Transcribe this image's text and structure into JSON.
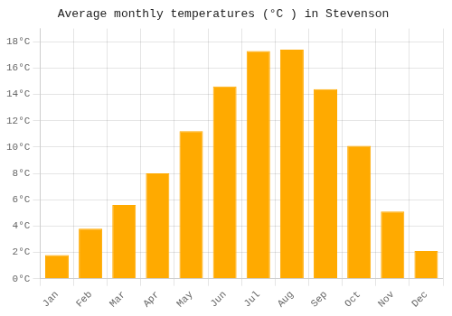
{
  "chart_data": {
    "type": "bar",
    "title": "Average monthly temperatures (°C ) in Stevenson",
    "categories": [
      "Jan",
      "Feb",
      "Mar",
      "Apr",
      "May",
      "Jun",
      "Jul",
      "Aug",
      "Sep",
      "Oct",
      "Nov",
      "Dec"
    ],
    "values": [
      1.8,
      3.8,
      5.6,
      8.0,
      11.2,
      14.6,
      17.3,
      17.4,
      14.4,
      10.1,
      5.1,
      2.1
    ],
    "color": "#FFAA00",
    "ylim": [
      0,
      19
    ],
    "yticks": [
      {
        "value": 0,
        "label": "0°C"
      },
      {
        "value": 2,
        "label": "2°C"
      },
      {
        "value": 4,
        "label": "4°C"
      },
      {
        "value": 6,
        "label": "6°C"
      },
      {
        "value": 8,
        "label": "8°C"
      },
      {
        "value": 10,
        "label": "10°C"
      },
      {
        "value": 12,
        "label": "12°C"
      },
      {
        "value": 14,
        "label": "14°C"
      },
      {
        "value": 16,
        "label": "16°C"
      },
      {
        "value": 18,
        "label": "18°C"
      }
    ],
    "grid": true
  }
}
